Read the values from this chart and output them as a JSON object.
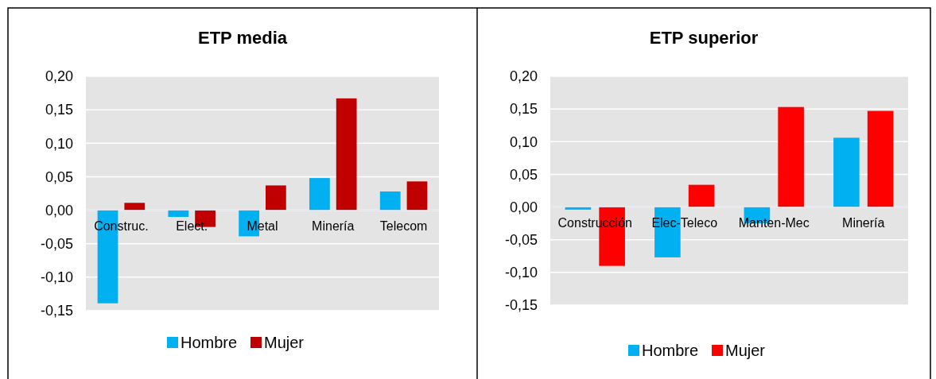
{
  "chart_data": [
    {
      "type": "bar",
      "title": "ETP media",
      "categories": [
        "Construc.",
        "Elect.",
        "Metal",
        "Minería",
        "Telecom"
      ],
      "series": [
        {
          "name": "Hombre",
          "color": "#00b0f0",
          "values": [
            -0.139,
            -0.01,
            -0.039,
            0.048,
            0.028
          ]
        },
        {
          "name": "Mujer",
          "color": "#c00000",
          "values": [
            0.011,
            -0.025,
            0.037,
            0.167,
            0.043
          ]
        }
      ],
      "ylim": [
        -0.15,
        0.2
      ],
      "yticks": [
        {
          "value": -0.15,
          "label": "-0,15"
        },
        {
          "value": -0.1,
          "label": "-0,10"
        },
        {
          "value": -0.05,
          "label": "-0,05"
        },
        {
          "value": 0,
          "label": "0,00"
        },
        {
          "value": 0.05,
          "label": "0,05"
        },
        {
          "value": 0.1,
          "label": "0,10"
        },
        {
          "value": 0.15,
          "label": "0,15"
        },
        {
          "value": 0.2,
          "label": "0,20"
        }
      ],
      "grid": "y",
      "legend": "bottom"
    },
    {
      "type": "bar",
      "title": "ETP superior",
      "categories": [
        "Construcción",
        "Elec-Teleco",
        "Manten-Mec",
        "Minería"
      ],
      "series": [
        {
          "name": "Hombre",
          "color": "#00b0f0",
          "values": [
            -0.004,
            -0.077,
            -0.025,
            0.106
          ]
        },
        {
          "name": "Mujer",
          "color": "#ff0000",
          "values": [
            -0.09,
            0.034,
            0.153,
            0.147
          ]
        }
      ],
      "ylim": [
        -0.15,
        0.2
      ],
      "yticks": [
        {
          "value": -0.15,
          "label": "-0,15"
        },
        {
          "value": -0.1,
          "label": "-0,10"
        },
        {
          "value": -0.05,
          "label": "-0,05"
        },
        {
          "value": 0,
          "label": "0,00"
        },
        {
          "value": 0.05,
          "label": "0,05"
        },
        {
          "value": 0.1,
          "label": "0,10"
        },
        {
          "value": 0.15,
          "label": "0,15"
        },
        {
          "value": 0.2,
          "label": "0,20"
        }
      ],
      "grid": "y",
      "legend": "bottom"
    }
  ]
}
